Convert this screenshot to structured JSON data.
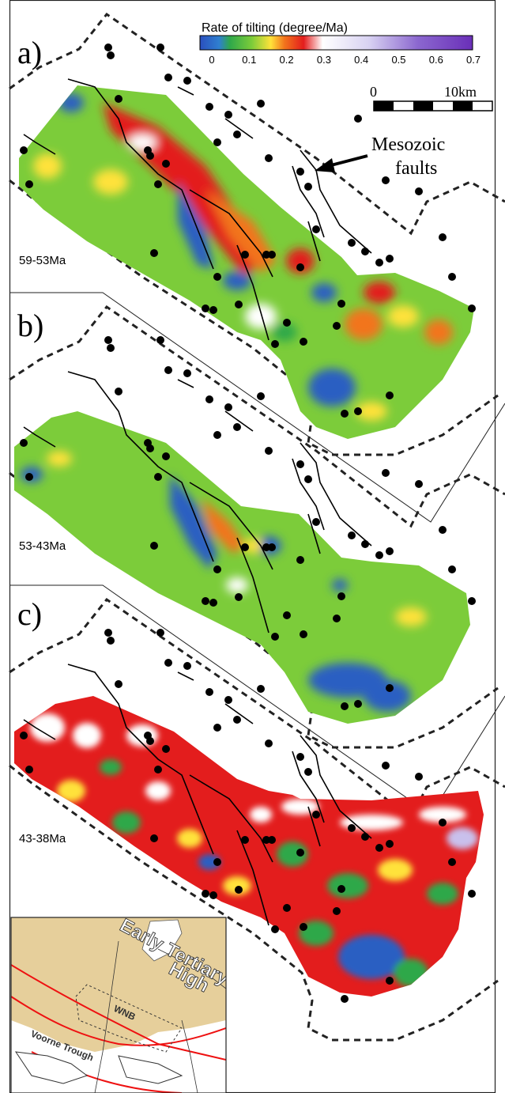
{
  "colorbar": {
    "title": "Rate of tilting (degree/Ma)",
    "ticks": [
      "0",
      "0.1",
      "0.2",
      "0.3",
      "0.4",
      "0.5",
      "0.6",
      "0.7"
    ],
    "colors": [
      "#2a5fc2",
      "#2fa84a",
      "#7ccc3a",
      "#ffe23a",
      "#f2741c",
      "#e31d1d",
      "#ffffff",
      "#c9c0ec",
      "#8b67cf",
      "#6a2fb8"
    ]
  },
  "scale_bar": {
    "start_label": "0",
    "end_label": "10km"
  },
  "annotation": {
    "line1": "Mesozoic",
    "line2": "faults"
  },
  "panels": [
    {
      "letter": "a)",
      "age": "59-53Ma"
    },
    {
      "letter": "b)",
      "age": "53-43Ma"
    },
    {
      "letter": "c)",
      "age": "43-38Ma"
    }
  ],
  "inset": {
    "line1": "Early Tertiary",
    "line2": "High",
    "label_wnb": "WNB",
    "label_trough": "Voorne Trough"
  }
}
